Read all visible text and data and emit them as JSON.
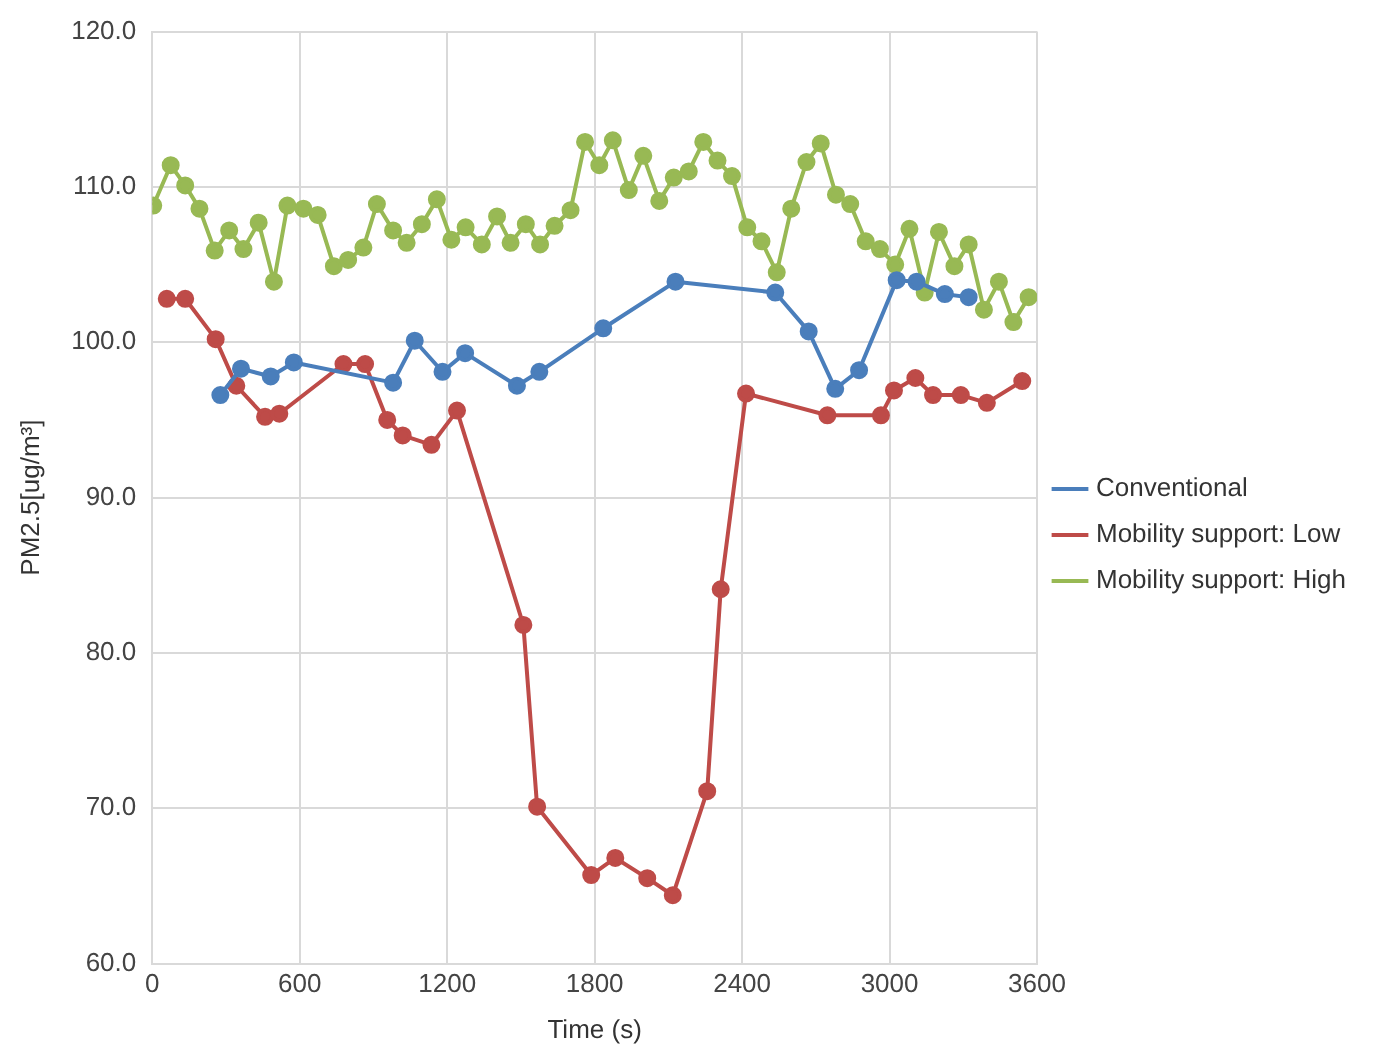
{
  "chart_data": {
    "type": "line",
    "xlabel": "Time (s)",
    "ylabel": "PM2.5[ug/m³]",
    "marker": "circle",
    "legend": "right",
    "grid": true,
    "xlim": [
      0,
      3600
    ],
    "xticks": [
      0,
      600,
      1200,
      1800,
      2400,
      3000,
      3600
    ],
    "ylim": [
      60,
      120
    ],
    "yticks": [
      {
        "value": 60,
        "label": "60.0"
      },
      {
        "value": 70,
        "label": "70.0"
      },
      {
        "value": 80,
        "label": "80.0"
      },
      {
        "value": 90,
        "label": "90.0"
      },
      {
        "value": 100,
        "label": "100.0"
      },
      {
        "value": 110,
        "label": "110.0"
      },
      {
        "value": 120,
        "label": "120.0"
      }
    ],
    "series": [
      {
        "name": "Conventional",
        "color": "#4a7ebb",
        "x": [
          277,
          361,
          482,
          576,
          980,
          1068,
          1181,
          1273,
          1484,
          1575,
          1835,
          2129,
          2535,
          2671,
          2779,
          2876,
          3029,
          3110,
          3225,
          3322
        ],
        "values": [
          96.6,
          98.3,
          97.8,
          98.7,
          97.4,
          100.1,
          98.1,
          99.3,
          97.2,
          98.1,
          100.9,
          103.9,
          103.2,
          100.7,
          97.0,
          98.2,
          104.0,
          103.9,
          103.1,
          102.9
        ]
      },
      {
        "name": "Mobility support: Low",
        "color": "#be4b48",
        "x": [
          59,
          134,
          258,
          342,
          459,
          517,
          778,
          866,
          956,
          1019,
          1136,
          1240,
          1510,
          1566,
          1786,
          1884,
          2014,
          2118,
          2258,
          2313,
          2416,
          2747,
          2965,
          3018,
          3105,
          3177,
          3290,
          3396,
          3540
        ],
        "values": [
          102.8,
          102.8,
          100.2,
          97.2,
          95.2,
          95.4,
          98.6,
          98.6,
          95.0,
          94.0,
          93.4,
          95.6,
          81.8,
          70.1,
          65.7,
          66.8,
          65.5,
          64.4,
          71.1,
          84.1,
          96.7,
          95.3,
          95.3,
          96.9,
          97.7,
          96.6,
          96.6,
          96.1,
          97.5
        ]
      },
      {
        "name": "Mobility support: High",
        "color": "#98b954",
        "x": [
          4,
          75,
          134,
          192,
          254,
          313,
          371,
          433,
          495,
          550,
          615,
          673,
          739,
          797,
          859,
          914,
          980,
          1035,
          1097,
          1158,
          1217,
          1275,
          1341,
          1403,
          1458,
          1520,
          1578,
          1637,
          1702,
          1761,
          1819,
          1874,
          1939,
          1998,
          2063,
          2122,
          2183,
          2242,
          2300,
          2359,
          2421,
          2479,
          2541,
          2600,
          2662,
          2720,
          2782,
          2840,
          2903,
          2961,
          3023,
          3081,
          3143,
          3201,
          3264,
          3322,
          3384,
          3445,
          3504,
          3566
        ],
        "values": [
          108.8,
          111.4,
          110.1,
          108.6,
          105.9,
          107.2,
          106.0,
          107.7,
          103.9,
          108.8,
          108.6,
          108.2,
          104.9,
          105.3,
          106.1,
          108.9,
          107.2,
          106.4,
          107.6,
          109.2,
          106.6,
          107.4,
          106.3,
          108.1,
          106.4,
          107.6,
          106.3,
          107.5,
          108.5,
          112.9,
          111.4,
          113.0,
          109.8,
          112.0,
          109.1,
          110.6,
          111.0,
          112.9,
          111.7,
          110.7,
          107.4,
          106.5,
          104.5,
          108.6,
          111.6,
          112.8,
          109.5,
          108.9,
          106.5,
          106.0,
          105.0,
          107.3,
          103.2,
          107.1,
          104.9,
          106.3,
          102.1,
          103.9,
          101.3,
          102.9
        ]
      }
    ]
  }
}
